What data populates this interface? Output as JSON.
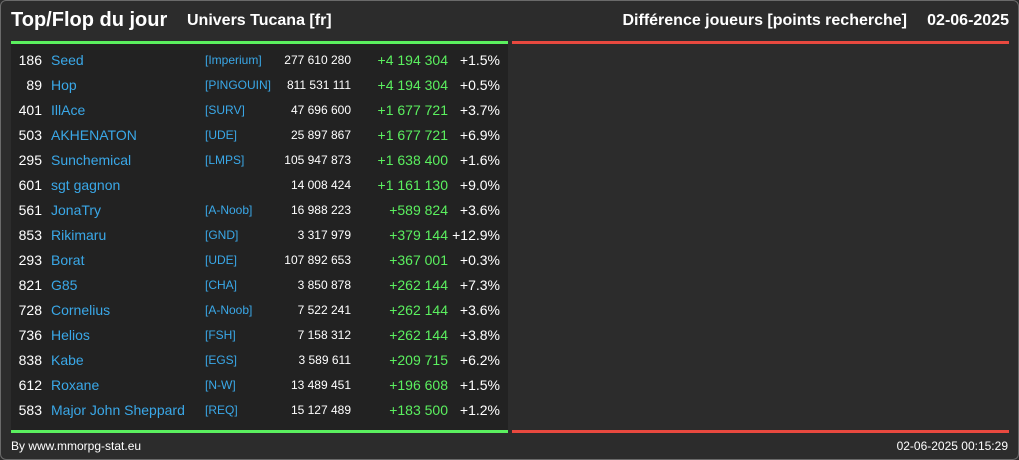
{
  "header": {
    "title": "Top/Flop du jour",
    "subtitle": "Univers Tucana [fr]",
    "category": "Différence joueurs [points recherche]",
    "date": "02-06-2025"
  },
  "colors": {
    "top_accent": "#5bf05f",
    "flop_accent": "#e9493f",
    "name_color": "#3aa8e8",
    "background": "#2c2c2c"
  },
  "top_list": [
    {
      "rank": "186",
      "name": "Seed",
      "ally": "[Imperium]",
      "points": "277 610 280",
      "delta": "+4 194 304",
      "pct": "+1.5%"
    },
    {
      "rank": "89",
      "name": "Hop",
      "ally": "[PINGOUIN]",
      "points": "811 531 111",
      "delta": "+4 194 304",
      "pct": "+0.5%"
    },
    {
      "rank": "401",
      "name": "IllAce",
      "ally": "[SURV]",
      "points": "47 696 600",
      "delta": "+1 677 721",
      "pct": "+3.7%"
    },
    {
      "rank": "503",
      "name": "AKHENATON",
      "ally": "[UDE]",
      "points": "25 897 867",
      "delta": "+1 677 721",
      "pct": "+6.9%"
    },
    {
      "rank": "295",
      "name": "Sunchemical",
      "ally": "[LMPS]",
      "points": "105 947 873",
      "delta": "+1 638 400",
      "pct": "+1.6%"
    },
    {
      "rank": "601",
      "name": "sgt gagnon",
      "ally": "",
      "points": "14 008 424",
      "delta": "+1 161 130",
      "pct": "+9.0%"
    },
    {
      "rank": "561",
      "name": "JonaTry",
      "ally": "[A-Noob]",
      "points": "16 988 223",
      "delta": "+589 824",
      "pct": "+3.6%"
    },
    {
      "rank": "853",
      "name": "Rikimaru",
      "ally": "[GND]",
      "points": "3 317 979",
      "delta": "+379 144",
      "pct": "+12.9%"
    },
    {
      "rank": "293",
      "name": "Borat",
      "ally": "[UDE]",
      "points": "107 892 653",
      "delta": "+367 001",
      "pct": "+0.3%"
    },
    {
      "rank": "821",
      "name": "G85",
      "ally": "[CHA]",
      "points": "3 850 878",
      "delta": "+262 144",
      "pct": "+7.3%"
    },
    {
      "rank": "728",
      "name": "Cornelius",
      "ally": "[A-Noob]",
      "points": "7 522 241",
      "delta": "+262 144",
      "pct": "+3.6%"
    },
    {
      "rank": "736",
      "name": "Helios",
      "ally": "[FSH]",
      "points": "7 158 312",
      "delta": "+262 144",
      "pct": "+3.8%"
    },
    {
      "rank": "838",
      "name": "Kabe",
      "ally": "[EGS]",
      "points": "3 589 611",
      "delta": "+209 715",
      "pct": "+6.2%"
    },
    {
      "rank": "612",
      "name": "Roxane",
      "ally": "[N-W]",
      "points": "13 489 451",
      "delta": "+196 608",
      "pct": "+1.5%"
    },
    {
      "rank": "583",
      "name": "Major John Sheppard",
      "ally": "[REQ]",
      "points": "15 127 489",
      "delta": "+183 500",
      "pct": "+1.2%"
    }
  ],
  "flop_list": [],
  "footer": {
    "credit": "By www.mmorpg-stat.eu",
    "timestamp": "02-06-2025 00:15:29"
  }
}
